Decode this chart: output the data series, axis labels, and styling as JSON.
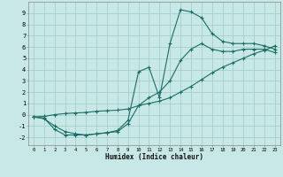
{
  "xlabel": "Humidex (Indice chaleur)",
  "xlim": [
    -0.5,
    23.5
  ],
  "ylim": [
    -2.7,
    10.0
  ],
  "xticks": [
    0,
    1,
    2,
    3,
    4,
    5,
    6,
    7,
    8,
    9,
    10,
    11,
    12,
    13,
    14,
    15,
    16,
    17,
    18,
    19,
    20,
    21,
    22,
    23
  ],
  "yticks": [
    -2,
    -1,
    0,
    1,
    2,
    3,
    4,
    5,
    6,
    7,
    8,
    9
  ],
  "bg_color": "#c8e8e8",
  "grid_color": "#a8cccc",
  "line_color": "#1a6e64",
  "line1_x": [
    0,
    1,
    2,
    3,
    4,
    5,
    6,
    7,
    8,
    9,
    10,
    11,
    12,
    13,
    14,
    15,
    16,
    17,
    18,
    19,
    20,
    21,
    22,
    23
  ],
  "line1_y": [
    -0.2,
    -0.3,
    -1.3,
    -1.8,
    -1.8,
    -1.8,
    -1.7,
    -1.6,
    -1.4,
    -0.5,
    3.8,
    4.2,
    1.5,
    6.3,
    9.3,
    9.1,
    8.6,
    7.2,
    6.5,
    6.3,
    6.3,
    6.3,
    6.1,
    5.8
  ],
  "line2_x": [
    0,
    1,
    2,
    3,
    4,
    5,
    6,
    7,
    8,
    9,
    10,
    11,
    12,
    13,
    14,
    15,
    16,
    17,
    18,
    19,
    20,
    21,
    22,
    23
  ],
  "line2_y": [
    -0.2,
    -0.15,
    0.0,
    0.1,
    0.15,
    0.2,
    0.3,
    0.35,
    0.4,
    0.5,
    0.8,
    1.0,
    1.2,
    1.5,
    2.0,
    2.5,
    3.1,
    3.7,
    4.2,
    4.6,
    5.0,
    5.4,
    5.7,
    6.1
  ],
  "line3_x": [
    0,
    1,
    2,
    3,
    4,
    5,
    6,
    7,
    8,
    9,
    10,
    11,
    12,
    13,
    14,
    15,
    16,
    17,
    18,
    19,
    20,
    21,
    22,
    23
  ],
  "line3_y": [
    -0.2,
    -0.35,
    -1.0,
    -1.5,
    -1.7,
    -1.8,
    -1.7,
    -1.6,
    -1.5,
    -0.8,
    0.8,
    1.5,
    2.0,
    3.0,
    4.8,
    5.8,
    6.3,
    5.8,
    5.6,
    5.6,
    5.8,
    5.8,
    5.8,
    5.5
  ]
}
